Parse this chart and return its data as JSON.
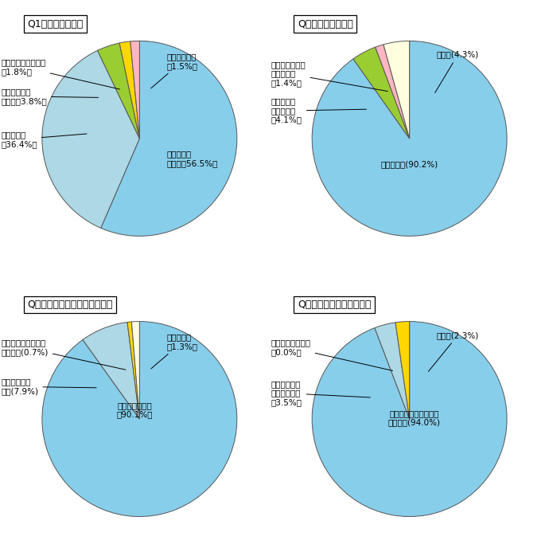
{
  "q1": {
    "title": "Q1　現事業の評価",
    "values": [
      56.5,
      36.4,
      3.8,
      1.8,
      1.5
    ],
    "colors": [
      "#87CEEB",
      "#ADD8E6",
      "#9ACD32",
      "#FFD700",
      "#FFB6C1"
    ],
    "startangle": 90,
    "counterclock": false
  },
  "q2": {
    "title": "Q２　現在の税負担",
    "values": [
      90.2,
      4.1,
      1.4,
      4.3
    ],
    "colors": [
      "#87CEEB",
      "#9ACD32",
      "#FFB6C1",
      "#FFFFE0"
    ],
    "startangle": 90,
    "counterclock": false
  },
  "q3": {
    "title": "Q３　荒廃森林の顕在化の認識",
    "values": [
      90.1,
      7.9,
      0.7,
      1.3
    ],
    "colors": [
      "#87CEEB",
      "#ADD8E6",
      "#FFD700",
      "#FFFFE0"
    ],
    "startangle": 90,
    "counterclock": false
  },
  "q4": {
    "title": "Q４　今後の事業のあり方",
    "values": [
      94.0,
      3.5,
      0.0,
      2.3
    ],
    "colors": [
      "#87CEEB",
      "#ADD8E6",
      "#FFFFFF",
      "#FFD700"
    ],
    "startangle": 90,
    "counterclock": false
  },
  "bg": "#FFFFFF",
  "edge_color": "#555555",
  "title_fs": 9,
  "label_fs": 7.5,
  "arrow_lw": 0.7
}
